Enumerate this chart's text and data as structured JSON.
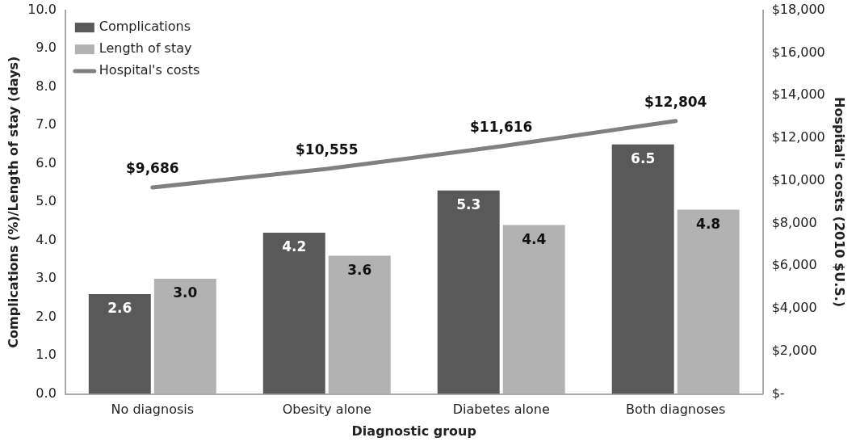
{
  "chart_data": {
    "type": "bar",
    "xlabel": "Diagnostic group",
    "ylabel": "Complications (%)/Length of stay (days)",
    "y2label": "Hospital's costs (2010 $U.S.)",
    "categories": [
      "No diagnosis",
      "Obesity alone",
      "Diabetes alone",
      "Both diagnoses"
    ],
    "series": [
      {
        "name": "Complications",
        "color": "#595959",
        "values": [
          2.6,
          4.2,
          5.3,
          6.5
        ],
        "value_labels": [
          "2.6",
          "4.2",
          "5.3",
          "6.5"
        ]
      },
      {
        "name": "Length of stay",
        "color": "#b2b2b2",
        "values": [
          3.0,
          3.6,
          4.4,
          4.8
        ],
        "value_labels": [
          "3.0",
          "3.6",
          "4.4",
          "4.8"
        ]
      },
      {
        "name": "Hospital's costs",
        "type": "line",
        "axis": "y2",
        "color": "#808080",
        "values": [
          9686,
          10555,
          11616,
          12804
        ],
        "value_labels": [
          "$9,686",
          "$10,555",
          "$11,616",
          "$12,804"
        ]
      }
    ],
    "ylim": [
      0,
      10
    ],
    "yticks": [
      {
        "value": 0,
        "label": "0.0"
      },
      {
        "value": 1,
        "label": "1.0"
      },
      {
        "value": 2,
        "label": "2.0"
      },
      {
        "value": 3,
        "label": "3.0"
      },
      {
        "value": 4,
        "label": "4.0"
      },
      {
        "value": 5,
        "label": "5.0"
      },
      {
        "value": 6,
        "label": "6.0"
      },
      {
        "value": 7,
        "label": "7.0"
      },
      {
        "value": 8,
        "label": "8.0"
      },
      {
        "value": 9,
        "label": "9.0"
      },
      {
        "value": 10,
        "label": "10.0"
      }
    ],
    "y2lim": [
      0,
      18000
    ],
    "y2ticks": [
      {
        "value": 0,
        "label": "$-"
      },
      {
        "value": 2000,
        "label": "$2,000"
      },
      {
        "value": 4000,
        "label": "$4,000"
      },
      {
        "value": 6000,
        "label": "$6,000"
      },
      {
        "value": 8000,
        "label": "$8,000"
      },
      {
        "value": 10000,
        "label": "$10,000"
      },
      {
        "value": 12000,
        "label": "$12,000"
      },
      {
        "value": 14000,
        "label": "$14,000"
      },
      {
        "value": 16000,
        "label": "$16,000"
      },
      {
        "value": 18000,
        "label": "$18,000"
      }
    ],
    "grid": false,
    "legend": "top left",
    "marker": "none",
    "line_style": "solid"
  }
}
